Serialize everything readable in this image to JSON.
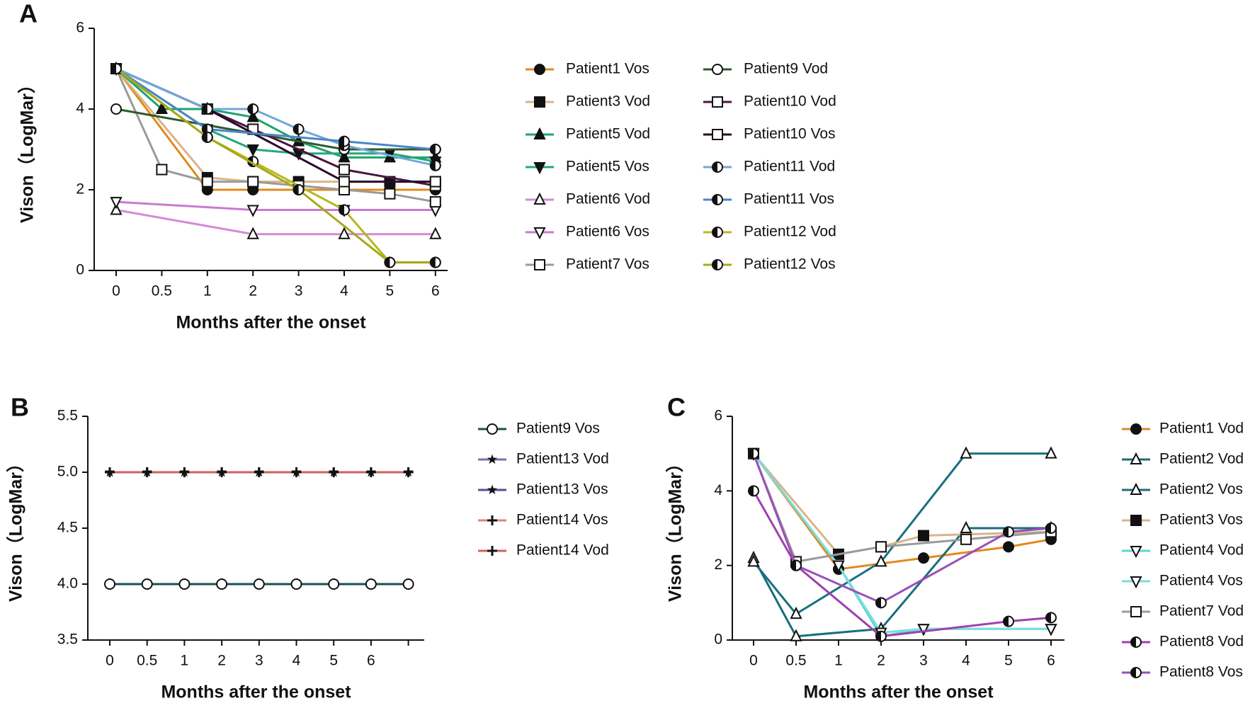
{
  "chart_data": [
    {
      "type": "line",
      "panel_label": "A",
      "ylabel": "Vison（LogMar）",
      "xlabel": "Months after the onset",
      "categories": [
        "0",
        "0.5",
        "1",
        "2",
        "3",
        "4",
        "5",
        "6"
      ],
      "ylim": [
        0,
        6
      ],
      "yticks": [
        0,
        2,
        4,
        6
      ],
      "series": [
        {
          "name": "Patient1 Vos",
          "color": "#e08a1e",
          "marker": "circle",
          "x": [
            "0",
            "1",
            "2",
            "3",
            "4",
            "5",
            "6"
          ],
          "values": [
            5,
            2.0,
            2.0,
            2.0,
            2.0,
            2.0,
            2.0
          ]
        },
        {
          "name": "Patient3 Vod",
          "color": "#d9b48a",
          "marker": "square",
          "x": [
            "0",
            "1",
            "2",
            "3",
            "4",
            "5",
            "6"
          ],
          "values": [
            5,
            2.3,
            2.2,
            2.2,
            2.2,
            2.2,
            2.2
          ]
        },
        {
          "name": "Patient5 Vod",
          "color": "#1fa36e",
          "marker": "triangle",
          "x": [
            "0",
            "0.5",
            "1",
            "2",
            "3",
            "4",
            "5",
            "6"
          ],
          "values": [
            5,
            4.0,
            4.0,
            3.8,
            3.2,
            2.8,
            2.8,
            2.8
          ]
        },
        {
          "name": "Patient5 Vos",
          "color": "#23a87a",
          "marker": "triangle-down",
          "x": [
            "0",
            "1",
            "2",
            "3",
            "4",
            "5",
            "6"
          ],
          "values": [
            5,
            3.5,
            3.0,
            2.9,
            2.9,
            2.9,
            2.7
          ]
        },
        {
          "name": "Patient6 Vod",
          "color": "#d48ad8",
          "marker": "triangle-open",
          "x": [
            "0",
            "2",
            "4",
            "6"
          ],
          "values": [
            1.5,
            0.9,
            0.9,
            0.9
          ]
        },
        {
          "name": "Patient6 Vos",
          "color": "#c97ad0",
          "marker": "triangle-down-open",
          "x": [
            "0",
            "2",
            "4",
            "6"
          ],
          "values": [
            1.7,
            1.5,
            1.5,
            1.5
          ]
        },
        {
          "name": "Patient7 Vos",
          "color": "#9a9a9a",
          "marker": "square-open",
          "x": [
            "0",
            "0.5",
            "1",
            "2",
            "3",
            "4",
            "5",
            "6"
          ],
          "values": [
            5,
            2.5,
            2.2,
            2.2,
            2.1,
            2.0,
            1.9,
            1.7
          ]
        },
        {
          "name": "Patient9 Vod",
          "color": "#2d5a2d",
          "marker": "circle-open",
          "x": [
            "0",
            "4",
            "6"
          ],
          "values": [
            4,
            3.0,
            3.0
          ]
        },
        {
          "name": "Patient10 Vod",
          "color": "#4a1542",
          "marker": "square-open",
          "x": [
            "0",
            "1",
            "2",
            "4",
            "6"
          ],
          "values": [
            5,
            4.0,
            3.5,
            2.5,
            2.1
          ]
        },
        {
          "name": "Patient10 Vos",
          "color": "#2a0a2a",
          "marker": "square-open",
          "x": [
            "0",
            "1",
            "4",
            "6"
          ],
          "values": [
            5,
            4.0,
            2.2,
            2.2
          ]
        },
        {
          "name": "Patient11 Vod",
          "color": "#6fa8dc",
          "marker": "circle-half",
          "x": [
            "0",
            "1",
            "2",
            "3",
            "4",
            "6"
          ],
          "values": [
            5,
            4.0,
            4.0,
            3.5,
            3.1,
            2.6
          ]
        },
        {
          "name": "Patient11 Vos",
          "color": "#4a86c8",
          "marker": "circle-half",
          "x": [
            "0",
            "1",
            "4",
            "6"
          ],
          "values": [
            5,
            3.5,
            3.2,
            3.0
          ]
        },
        {
          "name": "Patient12 Vod",
          "color": "#b8b820",
          "marker": "circle-half",
          "x": [
            "0",
            "1",
            "2",
            "4",
            "5",
            "6"
          ],
          "values": [
            5,
            3.3,
            2.7,
            1.5,
            0.2,
            0.2
          ]
        },
        {
          "name": "Patient12 Vos",
          "color": "#a8a818",
          "marker": "circle-half",
          "x": [
            "0",
            "1",
            "3",
            "5",
            "6"
          ],
          "values": [
            5,
            3.3,
            2.0,
            0.2,
            0.2
          ]
        }
      ]
    },
    {
      "type": "line",
      "panel_label": "B",
      "ylabel": "Vison（LogMar）",
      "xlabel": "Months after the onset",
      "categories": [
        "0",
        "0.5",
        "1",
        "2",
        "3",
        "4",
        "5",
        "6",
        null
      ],
      "ylim": [
        3.5,
        5.5
      ],
      "yticks": [
        3.5,
        {
          "value": 4,
          "label": "4.0"
        },
        4.5,
        {
          "value": 5,
          "label": "5.0"
        },
        5.5
      ],
      "series": [
        {
          "name": "Patient9 Vos",
          "color": "#1a5050",
          "marker": "circle-open",
          "values": [
            4,
            4,
            4,
            4,
            4,
            4,
            4,
            4,
            4
          ]
        },
        {
          "name": "Patient13 Vod",
          "color": "#7a6fb0",
          "marker": "star",
          "values": [
            5,
            5,
            5,
            5,
            5,
            5,
            5,
            5,
            5
          ]
        },
        {
          "name": "Patient13 Vos",
          "color": "#5a4e90",
          "marker": "star",
          "values": [
            5,
            5,
            5,
            5,
            5,
            5,
            5,
            5,
            5
          ]
        },
        {
          "name": "Patient14 Vos",
          "color": "#e08080",
          "marker": "plus",
          "values": [
            5,
            5,
            5,
            5,
            5,
            5,
            5,
            5,
            5
          ]
        },
        {
          "name": "Patient14 Vod",
          "color": "#d06060",
          "marker": "plus",
          "values": [
            5,
            5,
            5,
            5,
            5,
            5,
            5,
            5,
            5
          ]
        }
      ]
    },
    {
      "type": "line",
      "panel_label": "C",
      "ylabel": "Vison（LogMar）",
      "xlabel": "Months after the onset",
      "categories": [
        "0",
        "0.5",
        "1",
        "2",
        "3",
        "4",
        "5",
        "6"
      ],
      "ylim": [
        0,
        6
      ],
      "yticks": [
        0,
        2,
        4,
        6
      ],
      "series": [
        {
          "name": "Patient1 Vod",
          "color": "#e08a1e",
          "marker": "circle",
          "x": [
            "0",
            "1",
            "3",
            "5",
            "6"
          ],
          "values": [
            5,
            1.9,
            2.2,
            2.5,
            2.7
          ]
        },
        {
          "name": "Patient2 Vod",
          "color": "#1a6e7a",
          "marker": "triangle-open",
          "x": [
            "0",
            "0.5",
            "2",
            "4",
            "6"
          ],
          "values": [
            2.2,
            0.1,
            0.3,
            3.0,
            3.0
          ]
        },
        {
          "name": "Patient2 Vos",
          "color": "#1a7080",
          "marker": "triangle-open",
          "x": [
            "0",
            "0.5",
            "2",
            "4",
            "6"
          ],
          "values": [
            2.1,
            0.7,
            2.1,
            5.0,
            5.0
          ]
        },
        {
          "name": "Patient3 Vos",
          "color": "#d9b48a",
          "marker": "square",
          "x": [
            "0",
            "1",
            "2",
            "3",
            "6"
          ],
          "values": [
            5,
            2.3,
            2.5,
            2.8,
            2.9
          ]
        },
        {
          "name": "Patient4 Vod",
          "color": "#5fd4d4",
          "marker": "triangle-down-open",
          "x": [
            "0",
            "1",
            "2",
            "3",
            "6"
          ],
          "values": [
            5,
            2.0,
            0.1,
            0.3,
            0.3
          ]
        },
        {
          "name": "Patient4 Vos",
          "color": "#7adede",
          "marker": "triangle-down-open",
          "x": [
            "0",
            "1",
            "2",
            "3",
            "6"
          ],
          "values": [
            5,
            2.0,
            0.2,
            0.3,
            0.3
          ]
        },
        {
          "name": "Patient7 Vod",
          "color": "#9a9a9a",
          "marker": "square-open",
          "x": [
            "0",
            "0.5",
            "2",
            "4",
            "6"
          ],
          "values": [
            5,
            2.1,
            2.5,
            2.7,
            2.9
          ]
        },
        {
          "name": "Patient8 Vod",
          "color": "#a040b0",
          "marker": "circle-half",
          "x": [
            "0",
            "0.5",
            "2",
            "5",
            "6"
          ],
          "values": [
            4,
            2.0,
            0.1,
            0.5,
            0.6
          ]
        },
        {
          "name": "Patient8 Vos",
          "color": "#9a50b8",
          "marker": "circle-half",
          "x": [
            "0",
            "0.5",
            "2",
            "5",
            "6"
          ],
          "values": [
            5,
            2.0,
            1.0,
            2.9,
            3.0
          ]
        }
      ]
    }
  ]
}
